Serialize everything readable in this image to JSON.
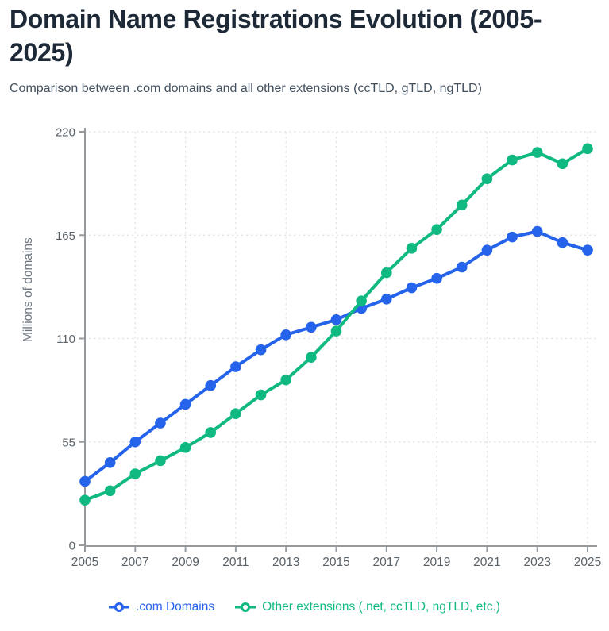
{
  "header": {
    "title": "Domain Name Registrations Evolution (2005-2025)",
    "subtitle": "Comparison between .com domains and all other extensions (ccTLD, gTLD, ngTLD)"
  },
  "chart_data": {
    "type": "line",
    "title": "Domain Name Registrations Evolution (2005-2025)",
    "xlabel": "",
    "ylabel": "Millions of domains",
    "ylim": [
      0,
      220
    ],
    "y_ticks": [
      0,
      55,
      110,
      165,
      220
    ],
    "x": [
      2005,
      2006,
      2007,
      2008,
      2009,
      2010,
      2011,
      2012,
      2013,
      2014,
      2015,
      2016,
      2017,
      2018,
      2019,
      2020,
      2021,
      2022,
      2023,
      2024,
      2025
    ],
    "x_tick_labels": [
      "2005",
      "2007",
      "2009",
      "2011",
      "2013",
      "2015",
      "2017",
      "2019",
      "2021",
      "2023",
      "2025"
    ],
    "grid": true,
    "grid_style": "dashed",
    "legend_position": "bottom",
    "series": [
      {
        "name": ".com Domains",
        "color": "#2563eb",
        "values": [
          34,
          44,
          55,
          65,
          75,
          85,
          95,
          104,
          112,
          116,
          120,
          126,
          131,
          137,
          142,
          148,
          157,
          164,
          167,
          161,
          157
        ]
      },
      {
        "name": "Other extensions (.net, ccTLD, ngTLD, etc.)",
        "color": "#10b981",
        "values": [
          24,
          29,
          38,
          45,
          52,
          60,
          70,
          80,
          88,
          100,
          114,
          130,
          145,
          158,
          168,
          181,
          195,
          205,
          209,
          203,
          211
        ]
      }
    ]
  }
}
